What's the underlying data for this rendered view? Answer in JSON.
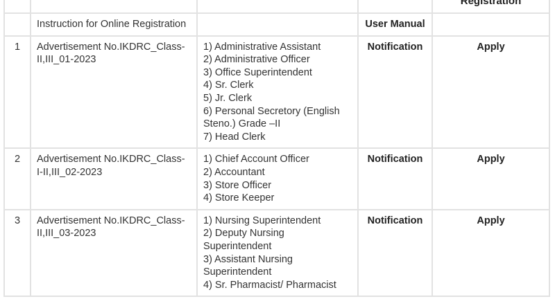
{
  "header": {
    "registration_label": "Registration"
  },
  "instruction_row": {
    "title": "Instruction for Online Registration",
    "manual_link": "User Manual"
  },
  "rows": [
    {
      "sr": "1",
      "advertisement": "Advertisement No.IKDRC_Class-II,III_01-2023",
      "posts": [
        "1) Administrative Assistant",
        "2) Administrative Officer",
        "3) Office Superintendent",
        "4) Sr. Clerk",
        "5) Jr. Clerk",
        "6) Personal Secretory (English Steno.) Grade –II",
        "7) Head Clerk"
      ],
      "notification": "Notification",
      "apply": "Apply"
    },
    {
      "sr": "2",
      "advertisement": "Advertisement No.IKDRC_Class-I-II,III_02-2023",
      "posts": [
        "1) Chief Account Officer",
        "2) Accountant",
        "3) Store Officer",
        "4) Store Keeper"
      ],
      "notification": "Notification",
      "apply": "Apply"
    },
    {
      "sr": "3",
      "advertisement": "Advertisement No.IKDRC_Class-II,III_03-2023",
      "posts": [
        "1) Nursing Superintendent",
        "2) Deputy Nursing Superintendent",
        "3) Assistant Nursing Superintendent",
        "4) Sr. Pharmacist/ Pharmacist"
      ],
      "notification": "Notification",
      "apply": "Apply"
    }
  ]
}
